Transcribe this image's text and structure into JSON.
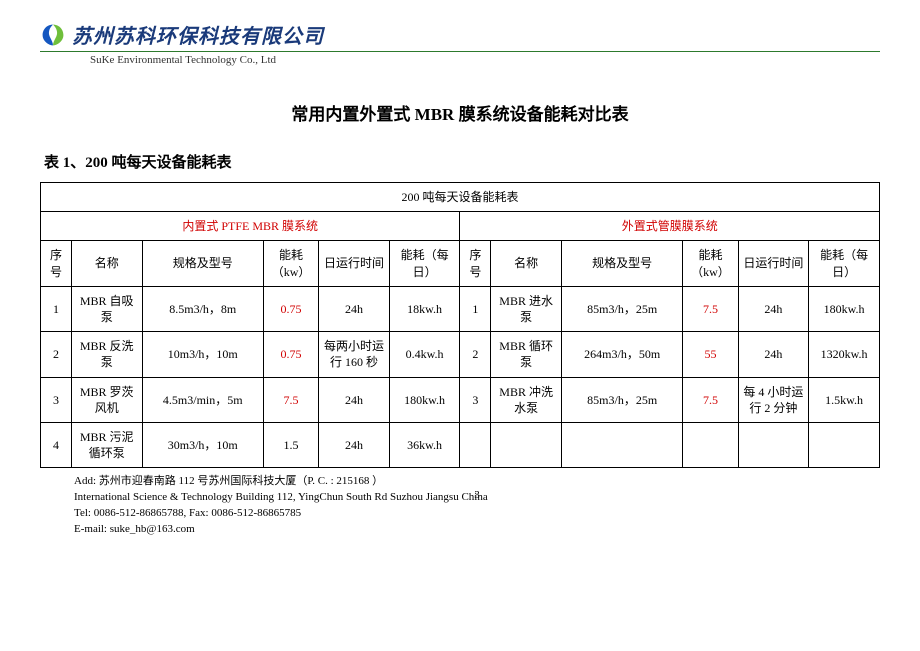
{
  "header": {
    "company_cn": "苏州苏科环保科技有限公司",
    "company_en": "SuKe Environmental Technology Co., Ltd",
    "logo_colors": {
      "left": "#1557c0",
      "right": "#6fbf3b"
    }
  },
  "title": "常用内置外置式 MBR 膜系统设备能耗对比表",
  "subtitle": "表 1、200 吨每天设备能耗表",
  "table": {
    "overall_title": "200 吨每天设备能耗表",
    "left_system": "内置式 PTFE MBR 膜系统",
    "right_system": "外置式管膜膜系统",
    "left_system_color": "#d10000",
    "right_system_color": "#d10000",
    "columns": {
      "seq": "序号",
      "name": "名称",
      "spec": "规格及型号",
      "kw": "能耗（kw）",
      "kw_r": "能耗（kw）",
      "run": "日运行时间",
      "day": "能耗（每日）"
    },
    "left_rows": [
      {
        "seq": "1",
        "name": "MBR 自吸泵",
        "spec": "8.5m3/h，8m",
        "kw": "0.75",
        "kw_red": true,
        "run": "24h",
        "day": "18kw.h"
      },
      {
        "seq": "2",
        "name": "MBR 反洗泵",
        "spec": "10m3/h，10m",
        "kw": "0.75",
        "kw_red": true,
        "run": "每两小时运行 160 秒",
        "day": "0.4kw.h"
      },
      {
        "seq": "3",
        "name": "MBR 罗茨风机",
        "spec": "4.5m3/min，5m",
        "kw": "7.5",
        "kw_red": true,
        "run": "24h",
        "day": "180kw.h"
      },
      {
        "seq": "4",
        "name": "MBR 污泥循环泵",
        "spec": "30m3/h，10m",
        "kw": "1.5",
        "kw_red": false,
        "run": "24h",
        "day": "36kw.h"
      }
    ],
    "right_rows": [
      {
        "seq": "1",
        "name": "MBR 进水泵",
        "spec": "85m3/h，25m",
        "kw": "7.5",
        "kw_red": true,
        "run": "24h",
        "day": "180kw.h"
      },
      {
        "seq": "2",
        "name": "MBR 循环泵",
        "spec": "264m3/h，50m",
        "kw": "55",
        "kw_red": true,
        "run": "24h",
        "day": "1320kw.h"
      },
      {
        "seq": "3",
        "name": "MBR 冲洗水泵",
        "spec": "85m3/h，25m",
        "kw": "7.5",
        "kw_red": true,
        "run": "每 4 小时运行 2 分钟",
        "day": "1.5kw.h"
      }
    ]
  },
  "footer": {
    "line1": "Add: 苏州市迎春南路 112 号苏州国际科技大厦（P. C. : 215168 ）",
    "line2": "International Science & Technology Building 112, YingChun South Rd Suzhou Jiangsu China",
    "line3": "Tel: 0086-512-86865788,   Fax: 0086-512-86865785",
    "line4": "E-mail:  suke_hb@163.com",
    "page_number": "3"
  }
}
